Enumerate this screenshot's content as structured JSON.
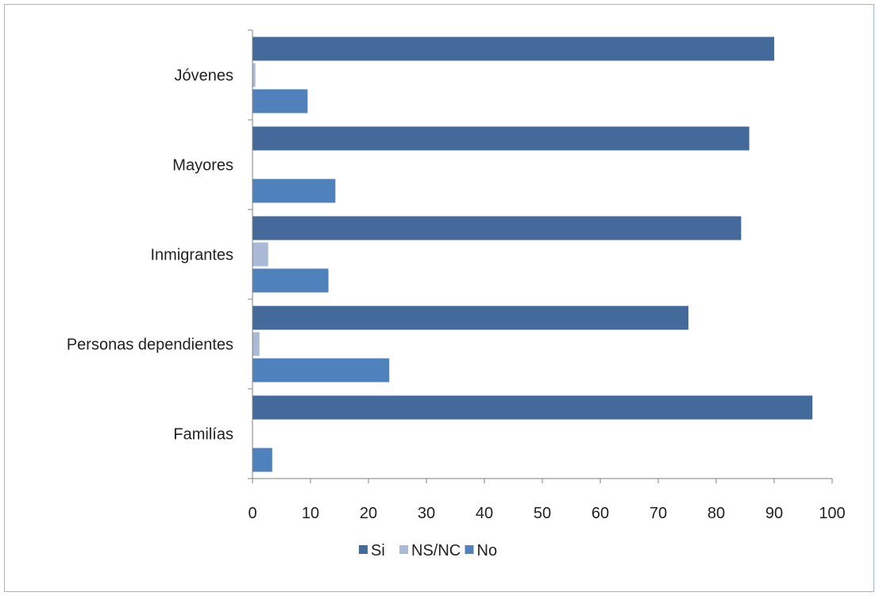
{
  "chart_data": {
    "type": "bar",
    "orientation": "horizontal",
    "categories": [
      "Jóvenes",
      "Mayores",
      "Inmigrantes",
      "Personas dependientes",
      "Familías"
    ],
    "series": [
      {
        "name": "Si",
        "color": "#44699b",
        "values": [
          90,
          85.7,
          84.3,
          75.2,
          96.6
        ]
      },
      {
        "name": "NS/NC",
        "color": "#aab9d6",
        "values": [
          0.5,
          0,
          2.7,
          1.2,
          0
        ]
      },
      {
        "name": "No",
        "color": "#4f81bd",
        "values": [
          9.5,
          14.3,
          13.1,
          23.6,
          3.4
        ]
      }
    ],
    "xlim": [
      0,
      100
    ],
    "xticks": [
      "0",
      "10",
      "20",
      "30",
      "40",
      "50",
      "60",
      "70",
      "80",
      "90",
      "100"
    ],
    "grid": false,
    "legend_position": "bottom"
  }
}
